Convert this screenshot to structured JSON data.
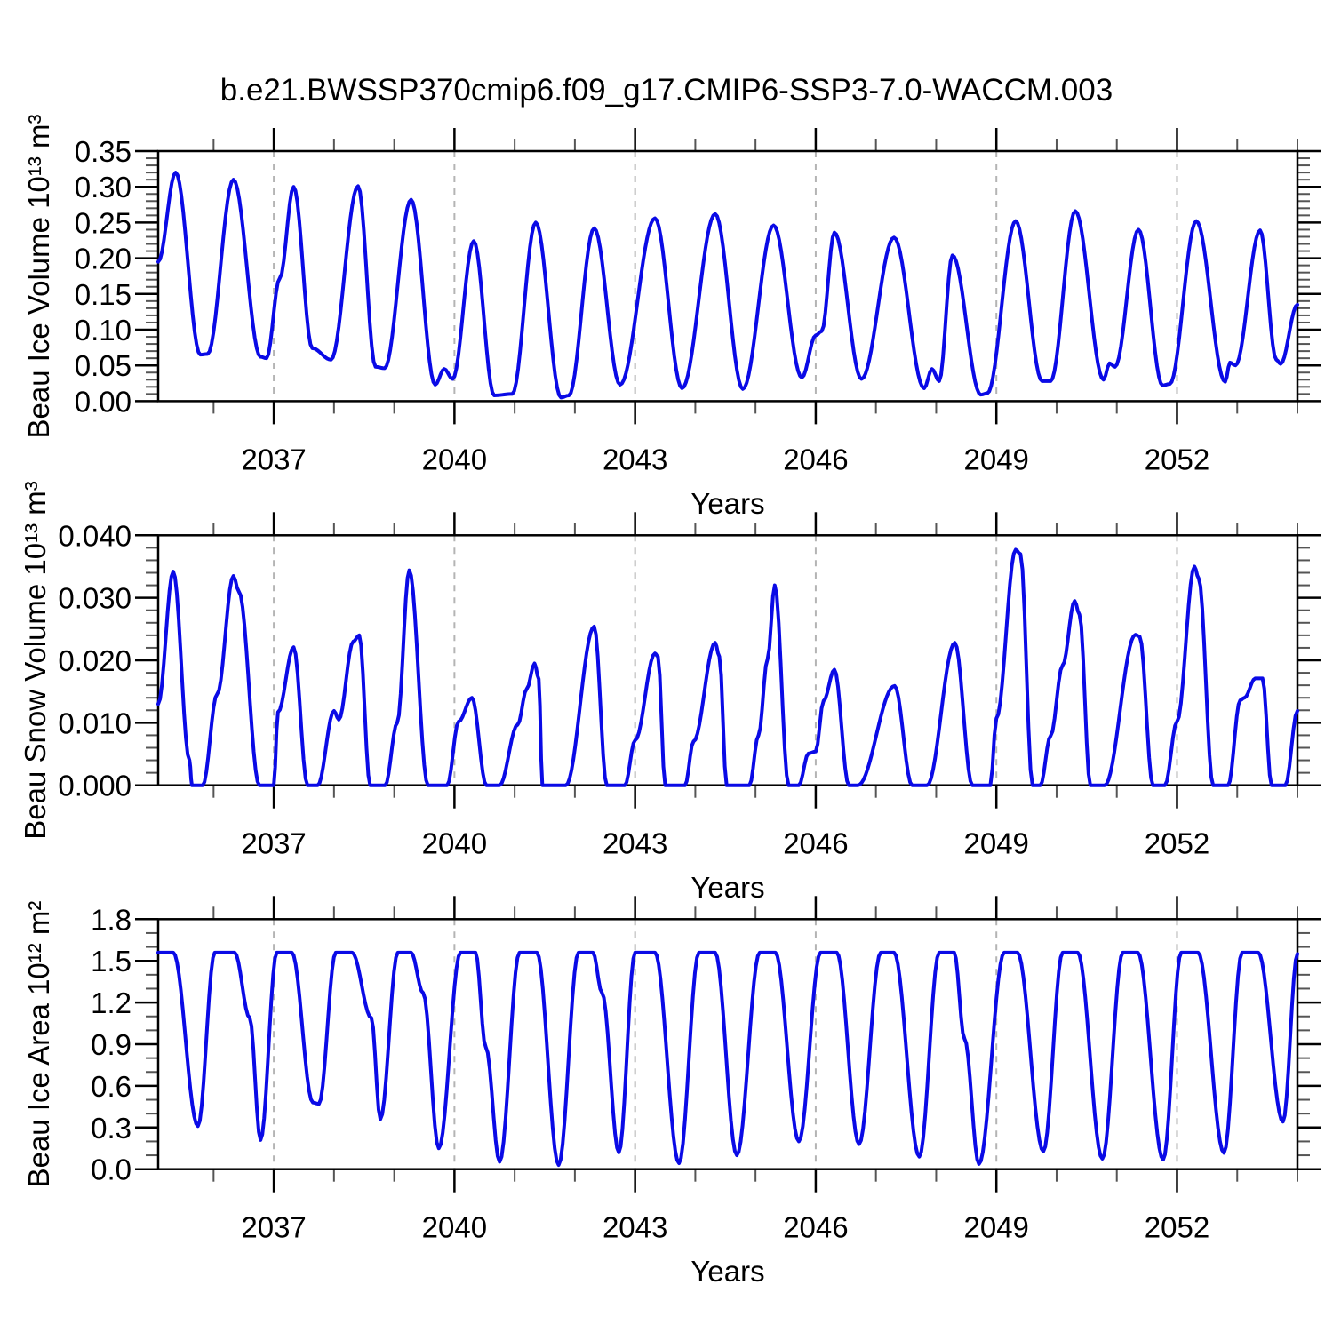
{
  "title": "b.e21.BWSSP370cmip6.f09_g17.CMIP6-SSP3-7.0-WACCM.003",
  "line_color": "#0a0ae6",
  "grid_color": "#b4b4b4",
  "axis_color": "#000000",
  "chart_data": [
    {
      "type": "line",
      "name": "beau-ice-volume",
      "ylabel": "Beau Ice Volume 10¹³ m³",
      "xlabel": "Years",
      "xlim": [
        2035.08,
        2054.0
      ],
      "ylim": [
        0.0,
        0.35
      ],
      "legend": "none",
      "grid": "dashed-vertical-at-major-xticks",
      "yticks": [
        {
          "v": 0.35,
          "label": "0.35"
        },
        {
          "v": 0.3,
          "label": "0.30"
        },
        {
          "v": 0.25,
          "label": "0.25"
        },
        {
          "v": 0.2,
          "label": "0.20"
        },
        {
          "v": 0.15,
          "label": "0.15"
        },
        {
          "v": 0.1,
          "label": "0.10"
        },
        {
          "v": 0.05,
          "label": "0.05"
        },
        {
          "v": 0.0,
          "label": "0.00"
        }
      ],
      "yminor_step": 0.01,
      "xticks": [
        {
          "v": 2037,
          "label": "2037"
        },
        {
          "v": 2040,
          "label": "2040"
        },
        {
          "v": 2043,
          "label": "2043"
        },
        {
          "v": 2046,
          "label": "2046"
        },
        {
          "v": 2049,
          "label": "2049"
        },
        {
          "v": 2052,
          "label": "2052"
        }
      ],
      "xminor_step": 1,
      "series": [
        {
          "name": "ice-volume",
          "points": [
            [
              2035.08,
              0.195
            ],
            [
              2035.37,
              0.32
            ],
            [
              2035.78,
              0.065
            ],
            [
              2035.9,
              0.066
            ],
            [
              2036.33,
              0.31
            ],
            [
              2036.78,
              0.062
            ],
            [
              2036.88,
              0.06
            ],
            [
              2037.1,
              0.172
            ],
            [
              2037.33,
              0.3
            ],
            [
              2037.64,
              0.074
            ],
            [
              2037.95,
              0.058
            ],
            [
              2038.4,
              0.301
            ],
            [
              2038.69,
              0.048
            ],
            [
              2038.84,
              0.046
            ],
            [
              2039.28,
              0.282
            ],
            [
              2039.68,
              0.023
            ],
            [
              2039.83,
              0.045
            ],
            [
              2039.97,
              0.031
            ],
            [
              2040.32,
              0.224
            ],
            [
              2040.66,
              0.008
            ],
            [
              2040.96,
              0.01
            ],
            [
              2041.35,
              0.25
            ],
            [
              2041.77,
              0.005
            ],
            [
              2041.9,
              0.008
            ],
            [
              2042.32,
              0.242
            ],
            [
              2042.75,
              0.023
            ],
            [
              2043.33,
              0.256
            ],
            [
              2043.78,
              0.018
            ],
            [
              2044.33,
              0.262
            ],
            [
              2044.79,
              0.017
            ],
            [
              2045.3,
              0.246
            ],
            [
              2045.77,
              0.033
            ],
            [
              2046.0,
              0.092
            ],
            [
              2046.1,
              0.098
            ],
            [
              2046.31,
              0.236
            ],
            [
              2046.76,
              0.031
            ],
            [
              2047.3,
              0.229
            ],
            [
              2047.8,
              0.018
            ],
            [
              2047.93,
              0.045
            ],
            [
              2048.05,
              0.028
            ],
            [
              2048.27,
              0.204
            ],
            [
              2048.74,
              0.009
            ],
            [
              2048.85,
              0.011
            ],
            [
              2049.32,
              0.252
            ],
            [
              2049.76,
              0.028
            ],
            [
              2049.9,
              0.028
            ],
            [
              2050.31,
              0.266
            ],
            [
              2050.78,
              0.03
            ],
            [
              2050.88,
              0.053
            ],
            [
              2050.97,
              0.048
            ],
            [
              2051.36,
              0.24
            ],
            [
              2051.76,
              0.022
            ],
            [
              2051.88,
              0.024
            ],
            [
              2052.32,
              0.252
            ],
            [
              2052.8,
              0.027
            ],
            [
              2052.88,
              0.054
            ],
            [
              2052.97,
              0.05
            ],
            [
              2053.38,
              0.239
            ],
            [
              2053.65,
              0.058
            ],
            [
              2053.72,
              0.052
            ],
            [
              2054.0,
              0.135
            ]
          ]
        }
      ]
    },
    {
      "type": "line",
      "name": "beau-snow-volume",
      "ylabel": "Beau Snow Volume 10¹³ m³",
      "xlabel": "Years",
      "xlim": [
        2035.08,
        2054.0
      ],
      "ylim": [
        0.0,
        0.04
      ],
      "legend": "none",
      "grid": "dashed-vertical-at-major-xticks",
      "yticks": [
        {
          "v": 0.04,
          "label": "0.040"
        },
        {
          "v": 0.03,
          "label": "0.030"
        },
        {
          "v": 0.02,
          "label": "0.020"
        },
        {
          "v": 0.01,
          "label": "0.010"
        },
        {
          "v": 0.0,
          "label": "0.000"
        }
      ],
      "yminor_step": 0.002,
      "xticks": [
        {
          "v": 2037,
          "label": "2037"
        },
        {
          "v": 2040,
          "label": "2040"
        },
        {
          "v": 2043,
          "label": "2043"
        },
        {
          "v": 2046,
          "label": "2046"
        },
        {
          "v": 2049,
          "label": "2049"
        },
        {
          "v": 2052,
          "label": "2052"
        }
      ],
      "xminor_step": 1,
      "series": [
        {
          "name": "snow-volume",
          "points": [
            [
              2035.08,
              0.013
            ],
            [
              2035.33,
              0.0342
            ],
            [
              2035.6,
              0.004
            ],
            [
              2035.64,
              0.0
            ],
            [
              2035.82,
              0.0
            ],
            [
              2036.06,
              0.0146
            ],
            [
              2036.33,
              0.0335
            ],
            [
              2036.42,
              0.031
            ],
            [
              2036.76,
              0.0
            ],
            [
              2037.0,
              0.0
            ],
            [
              2037.07,
              0.0117
            ],
            [
              2037.33,
              0.0221
            ],
            [
              2037.56,
              0.0
            ],
            [
              2037.73,
              0.0
            ],
            [
              2038.0,
              0.0119
            ],
            [
              2038.08,
              0.0105
            ],
            [
              2038.32,
              0.023
            ],
            [
              2038.42,
              0.024
            ],
            [
              2038.6,
              0.0
            ],
            [
              2038.85,
              0.0
            ],
            [
              2039.05,
              0.01
            ],
            [
              2039.25,
              0.0344
            ],
            [
              2039.56,
              0.0
            ],
            [
              2039.88,
              0.0
            ],
            [
              2040.07,
              0.0102
            ],
            [
              2040.29,
              0.014
            ],
            [
              2040.53,
              0.0
            ],
            [
              2040.75,
              0.0
            ],
            [
              2041.05,
              0.0097
            ],
            [
              2041.2,
              0.0154
            ],
            [
              2041.33,
              0.0195
            ],
            [
              2041.4,
              0.017
            ],
            [
              2041.46,
              0.0
            ],
            [
              2041.85,
              0.0
            ],
            [
              2042.32,
              0.0254
            ],
            [
              2042.53,
              0.0
            ],
            [
              2042.83,
              0.0
            ],
            [
              2043.0,
              0.0072
            ],
            [
              2043.33,
              0.0211
            ],
            [
              2043.38,
              0.0206
            ],
            [
              2043.5,
              0.0
            ],
            [
              2043.83,
              0.0
            ],
            [
              2043.97,
              0.007
            ],
            [
              2044.33,
              0.0228
            ],
            [
              2044.4,
              0.0206
            ],
            [
              2044.52,
              0.0
            ],
            [
              2044.9,
              0.0
            ],
            [
              2045.05,
              0.008
            ],
            [
              2045.2,
              0.0202
            ],
            [
              2045.32,
              0.032
            ],
            [
              2045.55,
              0.0
            ],
            [
              2045.72,
              0.0
            ],
            [
              2045.88,
              0.0051
            ],
            [
              2046.0,
              0.0054
            ],
            [
              2046.13,
              0.0135
            ],
            [
              2046.31,
              0.0185
            ],
            [
              2046.55,
              0.0
            ],
            [
              2046.7,
              0.0
            ],
            [
              2047.31,
              0.0159
            ],
            [
              2047.6,
              0.0
            ],
            [
              2047.85,
              0.0
            ],
            [
              2048.31,
              0.0228
            ],
            [
              2048.6,
              0.0
            ],
            [
              2048.9,
              0.0
            ],
            [
              2049.0,
              0.0107
            ],
            [
              2049.32,
              0.0377
            ],
            [
              2049.4,
              0.037
            ],
            [
              2049.6,
              0.0
            ],
            [
              2049.73,
              0.0
            ],
            [
              2049.9,
              0.0079
            ],
            [
              2050.1,
              0.0192
            ],
            [
              2050.3,
              0.0295
            ],
            [
              2050.38,
              0.0273
            ],
            [
              2050.56,
              0.0
            ],
            [
              2050.8,
              0.0
            ],
            [
              2051.31,
              0.0241
            ],
            [
              2051.38,
              0.0238
            ],
            [
              2051.6,
              0.0
            ],
            [
              2051.8,
              0.0
            ],
            [
              2052.0,
              0.0102
            ],
            [
              2052.29,
              0.035
            ],
            [
              2052.36,
              0.0331
            ],
            [
              2052.6,
              0.0
            ],
            [
              2052.85,
              0.0
            ],
            [
              2053.05,
              0.0136
            ],
            [
              2053.12,
              0.014
            ],
            [
              2053.3,
              0.0171
            ],
            [
              2053.42,
              0.0171
            ],
            [
              2053.57,
              0.0
            ],
            [
              2053.8,
              0.0
            ],
            [
              2054.0,
              0.0119
            ]
          ]
        }
      ]
    },
    {
      "type": "line",
      "name": "beau-ice-area",
      "ylabel": "Beau Ice Area 10¹² m²",
      "xlabel": "Years",
      "xlim": [
        2035.08,
        2054.0
      ],
      "ylim": [
        0.0,
        1.8
      ],
      "legend": "none",
      "grid": "dashed-vertical-at-major-xticks",
      "yticks": [
        {
          "v": 1.8,
          "label": "1.8"
        },
        {
          "v": 1.5,
          "label": "1.5"
        },
        {
          "v": 1.2,
          "label": "1.2"
        },
        {
          "v": 0.9,
          "label": "0.9"
        },
        {
          "v": 0.6,
          "label": "0.6"
        },
        {
          "v": 0.3,
          "label": "0.3"
        },
        {
          "v": 0.0,
          "label": "0.0"
        }
      ],
      "yminor_step": 0.1,
      "xticks": [
        {
          "v": 2037,
          "label": "2037"
        },
        {
          "v": 2040,
          "label": "2040"
        },
        {
          "v": 2043,
          "label": "2043"
        },
        {
          "v": 2046,
          "label": "2046"
        },
        {
          "v": 2049,
          "label": "2049"
        },
        {
          "v": 2052,
          "label": "2052"
        }
      ],
      "xminor_step": 1,
      "series": [
        {
          "name": "ice-area",
          "points": [
            [
              2035.08,
              1.56
            ],
            [
              2035.33,
              1.56
            ],
            [
              2035.74,
              0.31
            ],
            [
              2036.02,
              1.56
            ],
            [
              2036.35,
              1.56
            ],
            [
              2036.6,
              1.09
            ],
            [
              2036.78,
              0.21
            ],
            [
              2037.05,
              1.56
            ],
            [
              2037.3,
              1.56
            ],
            [
              2037.65,
              0.48
            ],
            [
              2037.75,
              0.47
            ],
            [
              2038.03,
              1.56
            ],
            [
              2038.3,
              1.56
            ],
            [
              2038.62,
              1.09
            ],
            [
              2038.77,
              0.36
            ],
            [
              2039.06,
              1.56
            ],
            [
              2039.28,
              1.56
            ],
            [
              2039.48,
              1.27
            ],
            [
              2039.74,
              0.15
            ],
            [
              2040.1,
              1.56
            ],
            [
              2040.35,
              1.56
            ],
            [
              2040.52,
              0.88
            ],
            [
              2040.75,
              0.053
            ],
            [
              2041.08,
              1.56
            ],
            [
              2041.37,
              1.56
            ],
            [
              2041.73,
              0.03
            ],
            [
              2042.06,
              1.56
            ],
            [
              2042.3,
              1.56
            ],
            [
              2042.45,
              1.27
            ],
            [
              2042.73,
              0.12
            ],
            [
              2043.0,
              1.56
            ],
            [
              2043.33,
              1.56
            ],
            [
              2043.73,
              0.043
            ],
            [
              2044.06,
              1.56
            ],
            [
              2044.33,
              1.56
            ],
            [
              2044.69,
              0.1
            ],
            [
              2045.07,
              1.56
            ],
            [
              2045.33,
              1.56
            ],
            [
              2045.72,
              0.2
            ],
            [
              2046.08,
              1.56
            ],
            [
              2046.35,
              1.56
            ],
            [
              2046.72,
              0.18
            ],
            [
              2047.08,
              1.56
            ],
            [
              2047.3,
              1.56
            ],
            [
              2047.72,
              0.09
            ],
            [
              2048.05,
              1.56
            ],
            [
              2048.3,
              1.56
            ],
            [
              2048.47,
              0.94
            ],
            [
              2048.71,
              0.037
            ],
            [
              2049.13,
              1.56
            ],
            [
              2049.35,
              1.56
            ],
            [
              2049.78,
              0.128
            ],
            [
              2050.1,
              1.56
            ],
            [
              2050.35,
              1.56
            ],
            [
              2050.76,
              0.075
            ],
            [
              2051.1,
              1.56
            ],
            [
              2051.35,
              1.56
            ],
            [
              2051.77,
              0.069
            ],
            [
              2052.07,
              1.56
            ],
            [
              2052.35,
              1.56
            ],
            [
              2052.78,
              0.117
            ],
            [
              2053.08,
              1.56
            ],
            [
              2053.35,
              1.56
            ],
            [
              2053.76,
              0.342
            ],
            [
              2054.0,
              1.55
            ]
          ]
        }
      ]
    }
  ]
}
